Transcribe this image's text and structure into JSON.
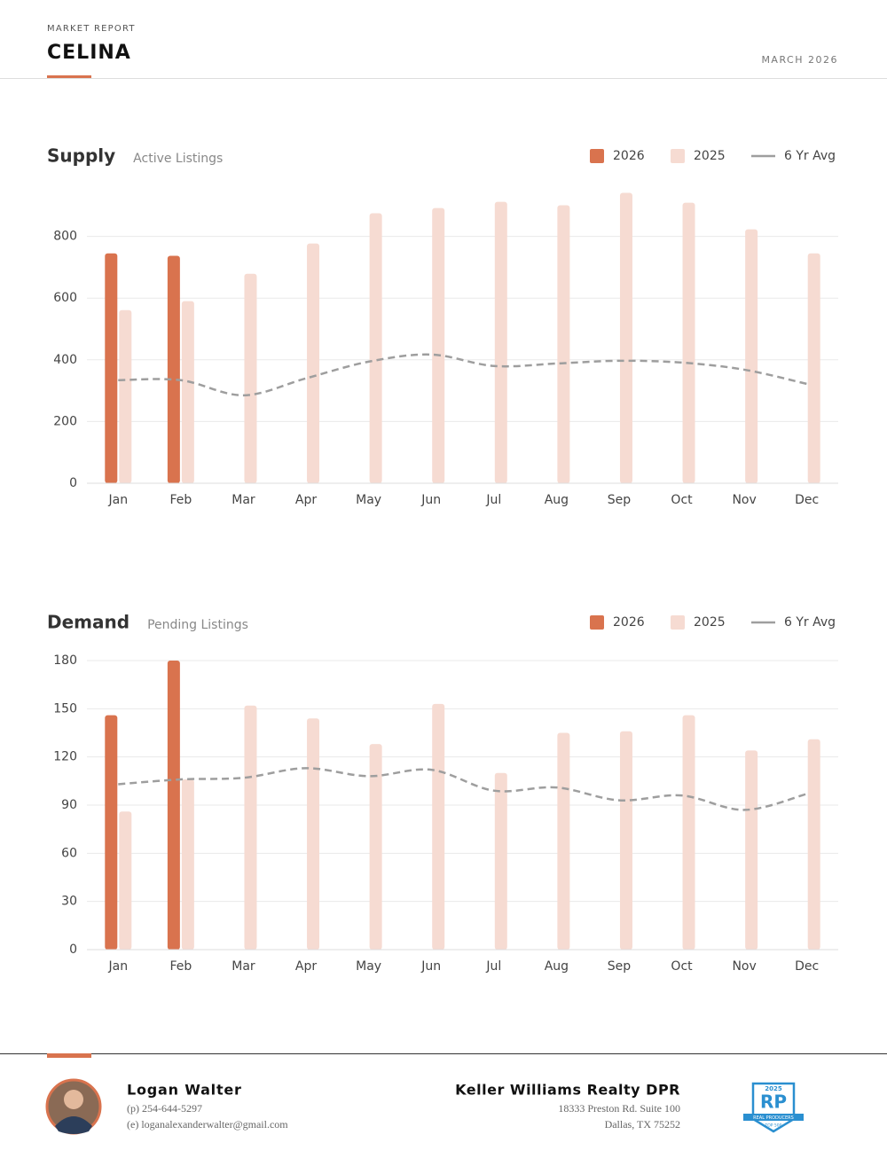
{
  "header": {
    "kicker": "MARKET REPORT",
    "title": "CELINA",
    "date": "MARCH 2026"
  },
  "chart_data": [
    {
      "type": "bar",
      "title": "Supply",
      "subtitle": "Active Listings",
      "categories": [
        "Jan",
        "Feb",
        "Mar",
        "Apr",
        "May",
        "Jun",
        "Jul",
        "Aug",
        "Sep",
        "Oct",
        "Nov",
        "Dec"
      ],
      "ylim": [
        0,
        1000
      ],
      "yticks": [
        0,
        200,
        400,
        600,
        800
      ],
      "grid": true,
      "series": [
        {
          "name": "2026",
          "type": "bar",
          "color": "#d9734e",
          "values": [
            745,
            737,
            null,
            null,
            null,
            null,
            null,
            null,
            null,
            null,
            null,
            null
          ]
        },
        {
          "name": "2025",
          "type": "bar",
          "color": "#f6dbd2",
          "values": [
            561,
            590,
            679,
            777,
            875,
            892,
            912,
            901,
            941,
            909,
            823,
            745
          ]
        },
        {
          "name": "6 Yr Avg",
          "type": "line",
          "color": "#9e9e9e",
          "values": [
            334,
            334,
            285,
            340,
            394,
            417,
            380,
            388,
            397,
            391,
            368,
            322
          ]
        }
      ]
    },
    {
      "type": "bar",
      "title": "Demand",
      "subtitle": "Pending Listings",
      "categories": [
        "Jan",
        "Feb",
        "Mar",
        "Apr",
        "May",
        "Jun",
        "Jul",
        "Aug",
        "Sep",
        "Oct",
        "Nov",
        "Dec"
      ],
      "ylim": [
        0,
        180
      ],
      "yticks": [
        0,
        30,
        60,
        90,
        120,
        150,
        180
      ],
      "grid": true,
      "series": [
        {
          "name": "2026",
          "type": "bar",
          "color": "#d9734e",
          "values": [
            146,
            180,
            null,
            null,
            null,
            null,
            null,
            null,
            null,
            null,
            null,
            null
          ]
        },
        {
          "name": "2025",
          "type": "bar",
          "color": "#f6dbd2",
          "values": [
            86,
            106,
            152,
            144,
            128,
            153,
            110,
            135,
            136,
            146,
            124,
            131
          ]
        },
        {
          "name": "6 Yr Avg",
          "type": "line",
          "color": "#9e9e9e",
          "values": [
            103,
            106,
            107,
            113,
            108,
            112,
            99,
            101,
            93,
            96,
            87,
            97
          ]
        }
      ]
    }
  ],
  "footer": {
    "agent": {
      "name": "Logan Walter",
      "phone": "(p) 254-644-5297",
      "email": "(e) loganalexanderwalter@gmail.com"
    },
    "company": {
      "name": "Keller Williams Realty DPR",
      "address1": "18333 Preston Rd. Suite 100",
      "address2": "Dallas, TX 75252"
    },
    "badge": {
      "year": "2025",
      "mark": "RP",
      "ribbon": "REAL PRODUCERS",
      "rank": "TOP 500"
    }
  }
}
